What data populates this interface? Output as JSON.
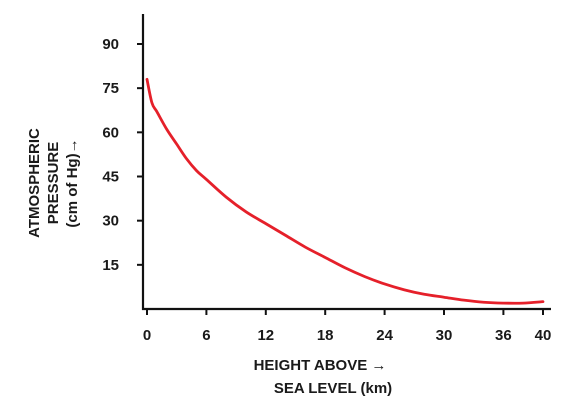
{
  "chart_data": {
    "type": "line",
    "title": "",
    "xlabel_lines": [
      "HEIGHT ABOVE →",
      "SEA LEVEL (km)"
    ],
    "ylabel_lines": [
      "ATMOSPHERIC",
      "PRESSURE",
      "(cm of Hg)→"
    ],
    "xlim": [
      0,
      40
    ],
    "ylim": [
      0,
      95
    ],
    "xticks": [
      0,
      6,
      12,
      18,
      24,
      30,
      36,
      40
    ],
    "yticks": [
      15,
      30,
      45,
      60,
      75,
      90
    ],
    "grid": false,
    "legend": "none",
    "series": [
      {
        "color": "#e5202a",
        "points": [
          [
            0,
            78
          ],
          [
            0.5,
            70
          ],
          [
            1,
            67
          ],
          [
            2,
            61
          ],
          [
            3,
            56
          ],
          [
            4,
            51
          ],
          [
            5,
            47
          ],
          [
            6,
            44
          ],
          [
            8,
            38
          ],
          [
            10,
            33
          ],
          [
            12,
            29
          ],
          [
            14,
            25
          ],
          [
            16,
            21
          ],
          [
            18,
            17.5
          ],
          [
            20,
            14
          ],
          [
            22,
            11
          ],
          [
            24,
            8.5
          ],
          [
            26,
            6.5
          ],
          [
            28,
            5
          ],
          [
            30,
            4
          ],
          [
            32,
            3
          ],
          [
            34,
            2.3
          ],
          [
            36,
            2
          ],
          [
            38,
            2
          ],
          [
            40,
            2.5
          ]
        ]
      }
    ]
  }
}
